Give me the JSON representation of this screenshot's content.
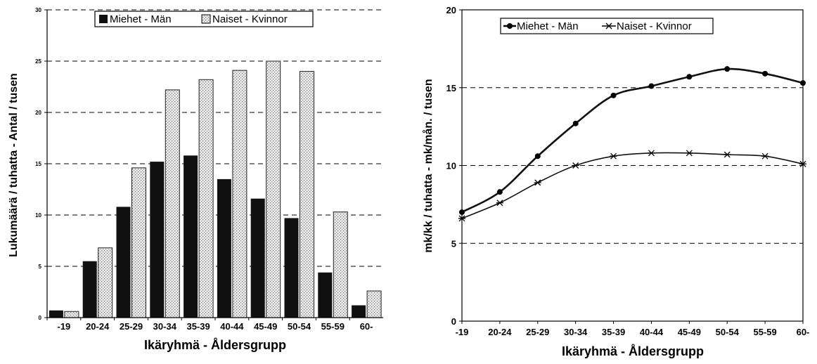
{
  "chart_data": [
    {
      "type": "bar",
      "categories": [
        "-19",
        "20-24",
        "25-29",
        "30-34",
        "35-39",
        "40-44",
        "45-49",
        "50-54",
        "55-59",
        "60-"
      ],
      "series": [
        {
          "name": "Miehet - Män",
          "values": [
            0.7,
            5.5,
            10.8,
            15.2,
            15.8,
            13.5,
            11.6,
            9.7,
            4.4,
            1.2
          ]
        },
        {
          "name": "Naiset - Kvinnor",
          "values": [
            0.6,
            6.8,
            14.6,
            22.2,
            23.2,
            24.1,
            25.0,
            24.0,
            10.3,
            2.6
          ]
        }
      ],
      "xlabel": "Ikäryhmä - Åldersgrupp",
      "ylabel": "Lukumäärä / tuhatta - Antal / tusen",
      "ylim": [
        0,
        30
      ],
      "yticks": [
        0,
        5,
        10,
        15,
        20,
        25,
        30
      ],
      "grid": true,
      "legend": "top",
      "colors": {
        "men": "#111111",
        "women_fill": "#d9d9d9",
        "women_stroke": "#222222"
      }
    },
    {
      "type": "line",
      "categories": [
        "-19",
        "20-24",
        "25-29",
        "30-34",
        "35-39",
        "40-44",
        "45-49",
        "50-54",
        "55-59",
        "60-"
      ],
      "series": [
        {
          "name": "Miehet - Män",
          "marker": "dot",
          "values": [
            7.0,
            8.3,
            10.6,
            12.7,
            14.5,
            15.1,
            15.7,
            16.2,
            15.9,
            15.3
          ]
        },
        {
          "name": "Naiset - Kvinnor",
          "marker": "star",
          "values": [
            6.6,
            7.6,
            8.9,
            10.0,
            10.6,
            10.8,
            10.8,
            10.7,
            10.6,
            10.1
          ]
        }
      ],
      "xlabel": "Ikäryhmä - Åldersgrupp",
      "ylabel": "mk/kk / tuhatta - mk/mån. / tusen",
      "ylim": [
        0,
        20
      ],
      "yticks": [
        0,
        5,
        10,
        15,
        20
      ],
      "grid": true,
      "legend": "top",
      "colors": {
        "line": "#111111"
      }
    }
  ]
}
